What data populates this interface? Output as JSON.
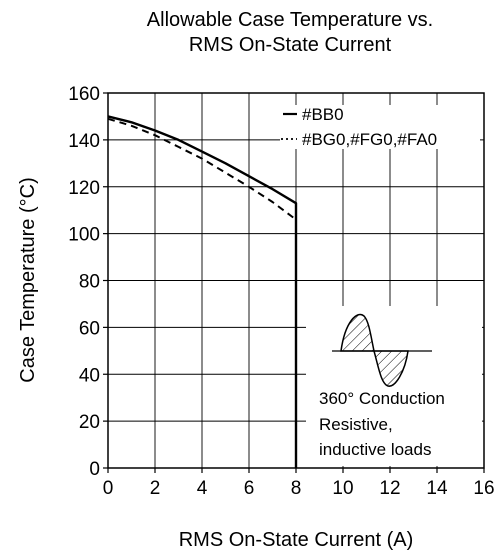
{
  "chart_data": {
    "type": "line",
    "title_lines": [
      "Allowable Case Temperature vs.",
      "RMS On-State Current"
    ],
    "xlabel": "RMS On-State Current  (A)",
    "ylabel": "Case Temperature  (°C)",
    "xlim": [
      0,
      16
    ],
    "ylim": [
      0,
      160
    ],
    "xticks": [
      0,
      2,
      4,
      6,
      8,
      10,
      12,
      14,
      16
    ],
    "yticks": [
      0,
      20,
      40,
      60,
      80,
      100,
      120,
      140,
      160
    ],
    "grid": true,
    "legend_position": "top-right",
    "series": [
      {
        "name": "#BB0",
        "style": "solid",
        "x": [
          0,
          1,
          2,
          3,
          4,
          5,
          6,
          7,
          8,
          8
        ],
        "y": [
          150,
          147.5,
          144,
          140,
          135,
          130,
          124.5,
          119,
          113,
          0
        ]
      },
      {
        "name": "#BG0,#FG0,#FA0",
        "style": "dashed",
        "x": [
          0,
          1,
          2,
          3,
          4,
          5,
          6,
          7,
          8,
          8
        ],
        "y": [
          149,
          146,
          142,
          137,
          132,
          126,
          120,
          113.5,
          106,
          0
        ]
      }
    ],
    "annotation": {
      "lines": [
        "360° Conduction",
        "Resistive,",
        "inductive loads"
      ],
      "icon": "sine-wave-conduction-icon"
    }
  }
}
